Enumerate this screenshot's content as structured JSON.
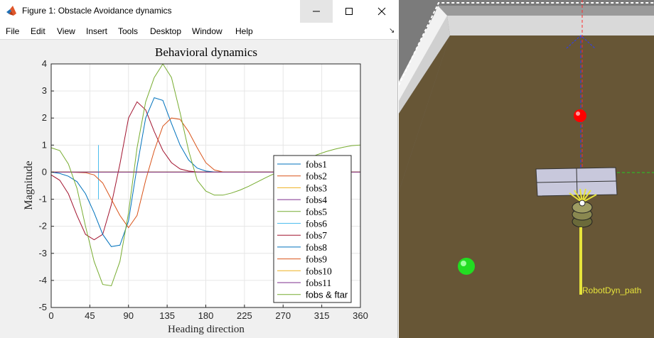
{
  "window": {
    "title": "Figure 1: Obstacle Avoidance dynamics",
    "icon": "matlab-logo-icon",
    "controls": [
      "minimize-icon",
      "maximize-icon",
      "close-icon"
    ]
  },
  "menu": {
    "items": [
      "File",
      "Edit",
      "View",
      "Insert",
      "Tools",
      "Desktop",
      "Window",
      "Help"
    ],
    "dock_icon": "dock-arrow-icon"
  },
  "chart_data": {
    "type": "line",
    "title": "Behavioral dynamics",
    "xlabel": "Heading direction",
    "ylabel": "Magnitude",
    "xlim": [
      0,
      360
    ],
    "ylim": [
      -5,
      4
    ],
    "xticks": [
      0,
      45,
      90,
      135,
      180,
      225,
      270,
      315,
      360
    ],
    "xtick_labels": [
      "0",
      "45",
      "90",
      "135",
      "180",
      "225",
      "270",
      "315",
      "360"
    ],
    "yticks": [
      -5,
      -4,
      -3,
      -2,
      -1,
      0,
      1,
      2,
      3,
      4
    ],
    "ytick_labels": [
      "-5",
      "-4",
      "-3",
      "-2",
      "-1",
      "0",
      "1",
      "2",
      "3",
      "4"
    ],
    "grid": true,
    "legend_position": "bottom-right",
    "series": [
      {
        "name": "fobs1",
        "color": "#0072bd",
        "x": [
          0,
          360
        ],
        "y": [
          0,
          0
        ]
      },
      {
        "name": "fobs2",
        "color": "#d95319",
        "x": [
          0,
          360
        ],
        "y": [
          0,
          0
        ]
      },
      {
        "name": "fobs3",
        "color": "#edb120",
        "x": [
          0,
          360
        ],
        "y": [
          0,
          0
        ]
      },
      {
        "name": "fobs4",
        "color": "#7e2f8e",
        "x": [
          0,
          360
        ],
        "y": [
          0,
          0
        ]
      },
      {
        "name": "fobs5",
        "color": "#77ac30",
        "x": [
          0,
          360
        ],
        "y": [
          0,
          0
        ]
      },
      {
        "name": "fobs6",
        "color": "#4dbeee",
        "x": [
          55,
          55
        ],
        "y": [
          -1,
          1
        ]
      },
      {
        "name": "fobs7",
        "color": "#a2142f",
        "x": [
          0,
          10,
          20,
          30,
          40,
          50,
          60,
          70,
          80,
          90,
          100,
          110,
          120,
          130,
          140,
          150,
          160,
          170,
          180,
          190,
          200,
          360
        ],
        "y": [
          -0.1,
          -0.3,
          -0.8,
          -1.6,
          -2.3,
          -2.5,
          -2.3,
          -1.2,
          0.3,
          2.0,
          2.6,
          2.3,
          1.5,
          0.8,
          0.35,
          0.12,
          0.04,
          0.01,
          0,
          0,
          0,
          0
        ]
      },
      {
        "name": "fobs8",
        "color": "#0072bd",
        "x": [
          0,
          10,
          20,
          30,
          40,
          50,
          60,
          70,
          80,
          90,
          100,
          110,
          120,
          130,
          140,
          150,
          160,
          170,
          180,
          190,
          200,
          360
        ],
        "y": [
          0,
          -0.05,
          -0.15,
          -0.35,
          -0.8,
          -1.5,
          -2.3,
          -2.75,
          -2.7,
          -1.8,
          0.2,
          2.0,
          2.75,
          2.65,
          1.8,
          1.0,
          0.45,
          0.15,
          0.04,
          0.01,
          0,
          0
        ]
      },
      {
        "name": "fobs9",
        "color": "#d95319",
        "x": [
          0,
          20,
          40,
          50,
          60,
          70,
          80,
          90,
          100,
          110,
          120,
          130,
          140,
          150,
          160,
          170,
          180,
          190,
          200,
          220,
          360
        ],
        "y": [
          0,
          0,
          -0.02,
          -0.1,
          -0.4,
          -1.0,
          -1.6,
          -2.05,
          -1.6,
          -0.3,
          0.8,
          1.7,
          2.0,
          1.95,
          1.5,
          0.9,
          0.35,
          0.08,
          0.01,
          0,
          0
        ]
      },
      {
        "name": "fobs10",
        "color": "#edb120",
        "x": [
          0,
          360
        ],
        "y": [
          0,
          0
        ]
      },
      {
        "name": "fobs11",
        "color": "#7e2f8e",
        "x": [
          0,
          360
        ],
        "y": [
          0,
          0
        ]
      },
      {
        "name": "fobs & ftar",
        "color": "#77ac30",
        "x": [
          0,
          10,
          20,
          30,
          40,
          50,
          60,
          70,
          80,
          90,
          100,
          110,
          120,
          130,
          140,
          150,
          160,
          170,
          180,
          190,
          200,
          210,
          220,
          230,
          240,
          250,
          260,
          270,
          280,
          290,
          300,
          310,
          320,
          330,
          340,
          350,
          360
        ],
        "y": [
          0.9,
          0.8,
          0.3,
          -0.6,
          -2.0,
          -3.3,
          -4.15,
          -4.2,
          -3.3,
          -1.5,
          0.9,
          2.6,
          3.5,
          4.0,
          3.5,
          2.2,
          0.8,
          -0.3,
          -0.7,
          -0.85,
          -0.85,
          -0.77,
          -0.66,
          -0.52,
          -0.36,
          -0.2,
          -0.05,
          0.1,
          0.25,
          0.4,
          0.53,
          0.65,
          0.76,
          0.85,
          0.92,
          0.98,
          1.0
        ]
      }
    ]
  },
  "sim": {
    "path_label": "RobotDyn_path",
    "colors": {
      "floor": "#675636",
      "wall": "#7a7a7a",
      "obstacle": "#c8c8dc",
      "target_red": "#ff0000",
      "target_green": "#22dd22",
      "path": "#e7e43b"
    }
  }
}
